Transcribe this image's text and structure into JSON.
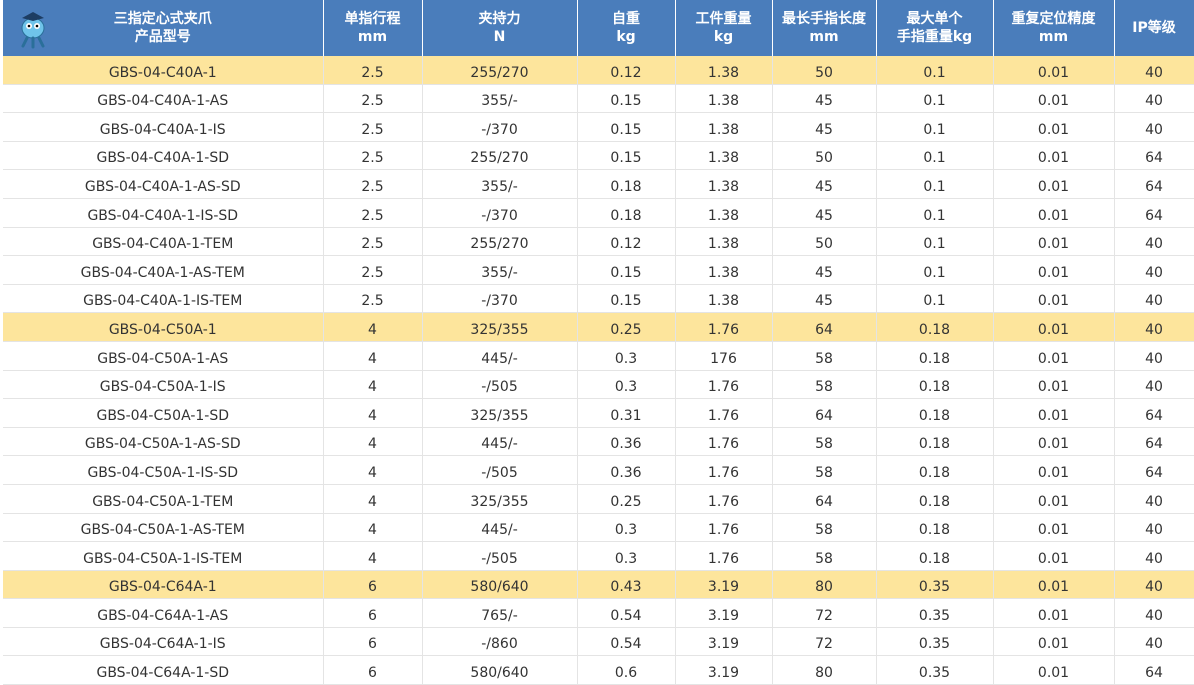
{
  "table": {
    "header": [
      [
        "三指定心式夹爪",
        "产品型号"
      ],
      [
        "单指行程",
        "mm"
      ],
      [
        "夹持力",
        "N"
      ],
      [
        "自重",
        "kg"
      ],
      [
        "工件重量",
        "kg"
      ],
      [
        "最长手指长度",
        "mm"
      ],
      [
        "最大单个",
        "手指重量kg"
      ],
      [
        "重复定位精度",
        "mm"
      ],
      [
        "IP等级"
      ]
    ],
    "rows": [
      [
        "GBS-04-C40A-1",
        "2.5",
        "255/270",
        "0.12",
        "1.38",
        "50",
        "0.1",
        "0.01",
        "40"
      ],
      [
        "GBS-04-C40A-1-AS",
        "2.5",
        "355/-",
        "0.15",
        "1.38",
        "45",
        "0.1",
        "0.01",
        "40"
      ],
      [
        "GBS-04-C40A-1-IS",
        "2.5",
        "-/370",
        "0.15",
        "1.38",
        "45",
        "0.1",
        "0.01",
        "40"
      ],
      [
        "GBS-04-C40A-1-SD",
        "2.5",
        "255/270",
        "0.15",
        "1.38",
        "50",
        "0.1",
        "0.01",
        "64"
      ],
      [
        "GBS-04-C40A-1-AS-SD",
        "2.5",
        "355/-",
        "0.18",
        "1.38",
        "45",
        "0.1",
        "0.01",
        "64"
      ],
      [
        "GBS-04-C40A-1-IS-SD",
        "2.5",
        "-/370",
        "0.18",
        "1.38",
        "45",
        "0.1",
        "0.01",
        "64"
      ],
      [
        "GBS-04-C40A-1-TEM",
        "2.5",
        "255/270",
        "0.12",
        "1.38",
        "50",
        "0.1",
        "0.01",
        "40"
      ],
      [
        "GBS-04-C40A-1-AS-TEM",
        "2.5",
        "355/-",
        "0.15",
        "1.38",
        "45",
        "0.1",
        "0.01",
        "40"
      ],
      [
        "GBS-04-C40A-1-IS-TEM",
        "2.5",
        "-/370",
        "0.15",
        "1.38",
        "45",
        "0.1",
        "0.01",
        "40"
      ],
      [
        "GBS-04-C50A-1",
        "4",
        "325/355",
        "0.25",
        "1.76",
        "64",
        "0.18",
        "0.01",
        "40"
      ],
      [
        "GBS-04-C50A-1-AS",
        "4",
        "445/-",
        "0.3",
        "176",
        "58",
        "0.18",
        "0.01",
        "40"
      ],
      [
        "GBS-04-C50A-1-IS",
        "4",
        "-/505",
        "0.3",
        "1.76",
        "58",
        "0.18",
        "0.01",
        "40"
      ],
      [
        "GBS-04-C50A-1-SD",
        "4",
        "325/355",
        "0.31",
        "1.76",
        "64",
        "0.18",
        "0.01",
        "64"
      ],
      [
        "GBS-04-C50A-1-AS-SD",
        "4",
        "445/-",
        "0.36",
        "1.76",
        "58",
        "0.18",
        "0.01",
        "64"
      ],
      [
        "GBS-04-C50A-1-IS-SD",
        "4",
        "-/505",
        "0.36",
        "1.76",
        "58",
        "0.18",
        "0.01",
        "64"
      ],
      [
        "GBS-04-C50A-1-TEM",
        "4",
        "325/355",
        "0.25",
        "1.76",
        "64",
        "0.18",
        "0.01",
        "40"
      ],
      [
        "GBS-04-C50A-1-AS-TEM",
        "4",
        "445/-",
        "0.3",
        "1.76",
        "58",
        "0.18",
        "0.01",
        "40"
      ],
      [
        "GBS-04-C50A-1-IS-TEM",
        "4",
        "-/505",
        "0.3",
        "1.76",
        "58",
        "0.18",
        "0.01",
        "40"
      ],
      [
        "GBS-04-C64A-1",
        "6",
        "580/640",
        "0.43",
        "3.19",
        "80",
        "0.35",
        "0.01",
        "40"
      ],
      [
        "GBS-04-C64A-1-AS",
        "6",
        "765/-",
        "0.54",
        "3.19",
        "72",
        "0.35",
        "0.01",
        "40"
      ],
      [
        "GBS-04-C64A-1-IS",
        "6",
        "-/860",
        "0.54",
        "3.19",
        "72",
        "0.35",
        "0.01",
        "40"
      ],
      [
        "GBS-04-C64A-1-SD",
        "6",
        "580/640",
        "0.6",
        "3.19",
        "80",
        "0.35",
        "0.01",
        "64"
      ]
    ]
  }
}
